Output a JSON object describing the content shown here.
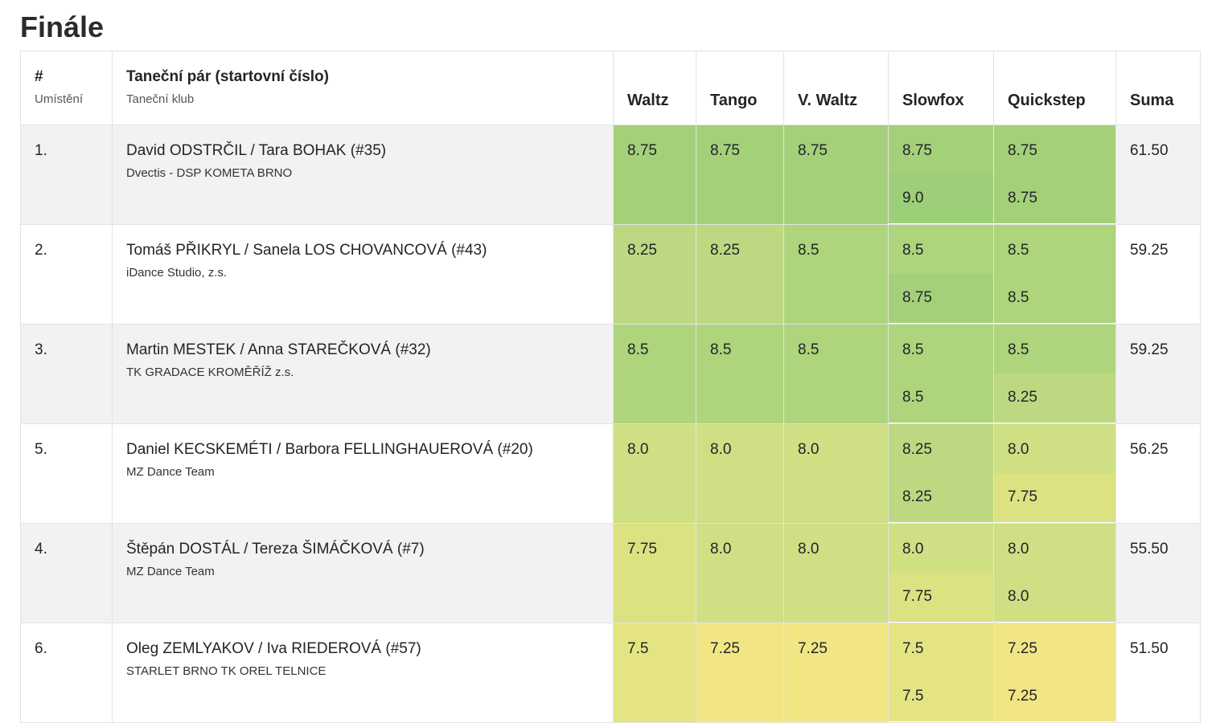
{
  "title": "Finále",
  "header": {
    "rank": "#",
    "rank_sub": "Umístění",
    "pair": "Taneční pár (startovní číslo)",
    "pair_sub": "Taneční klub",
    "dances": [
      "Waltz",
      "Tango",
      "V. Waltz",
      "Slowfox",
      "Quickstep"
    ],
    "sum": "Suma"
  },
  "colors": {
    "9.0": "#9ccf78",
    "8.75": "#a5d07a",
    "8.5": "#aed47c",
    "8.25": "#bcd981",
    "8.0": "#cfdf83",
    "7.75": "#dce182",
    "7.5": "#e5e482",
    "7.25": "#f2e684"
  },
  "rows": [
    {
      "rank": "1.",
      "pair": "David ODSTRČIL / Tara BOHAK (#35)",
      "club": "Dvectis - DSP KOMETA BRNO",
      "scores": [
        "8.75",
        "8.75",
        "8.75",
        [
          "8.75",
          "9.0"
        ],
        [
          "8.75",
          "8.75"
        ]
      ],
      "sum": "61.50"
    },
    {
      "rank": "2.",
      "pair": "Tomáš PŘIKRYL / Sanela LOS CHOVANCOVÁ (#43)",
      "club": "iDance Studio, z.s.",
      "scores": [
        "8.25",
        "8.25",
        "8.5",
        [
          "8.5",
          "8.75"
        ],
        [
          "8.5",
          "8.5"
        ]
      ],
      "sum": "59.25"
    },
    {
      "rank": "3.",
      "pair": "Martin MESTEK / Anna STAREČKOVÁ (#32)",
      "club": "TK GRADACE KROMĚŘÍŽ z.s.",
      "scores": [
        "8.5",
        "8.5",
        "8.5",
        [
          "8.5",
          "8.5"
        ],
        [
          "8.5",
          "8.25"
        ]
      ],
      "sum": "59.25"
    },
    {
      "rank": "5.",
      "pair": "Daniel KECSKEMÉTI / Barbora FELLINGHAUEROVÁ (#20)",
      "club": "MZ Dance Team",
      "scores": [
        "8.0",
        "8.0",
        "8.0",
        [
          "8.25",
          "8.25"
        ],
        [
          "8.0",
          "7.75"
        ]
      ],
      "sum": "56.25"
    },
    {
      "rank": "4.",
      "pair": "Štěpán DOSTÁL / Tereza ŠIMÁČKOVÁ (#7)",
      "club": "MZ Dance Team",
      "scores": [
        "7.75",
        "8.0",
        "8.0",
        [
          "8.0",
          "7.75"
        ],
        [
          "8.0",
          "8.0"
        ]
      ],
      "sum": "55.50"
    },
    {
      "rank": "6.",
      "pair": "Oleg ZEMLYAKOV / Iva RIEDEROVÁ (#57)",
      "club": "STARLET BRNO TK OREL TELNICE",
      "scores": [
        "7.5",
        "7.25",
        "7.25",
        [
          "7.5",
          "7.5"
        ],
        [
          "7.25",
          "7.25"
        ]
      ],
      "sum": "51.50"
    }
  ]
}
